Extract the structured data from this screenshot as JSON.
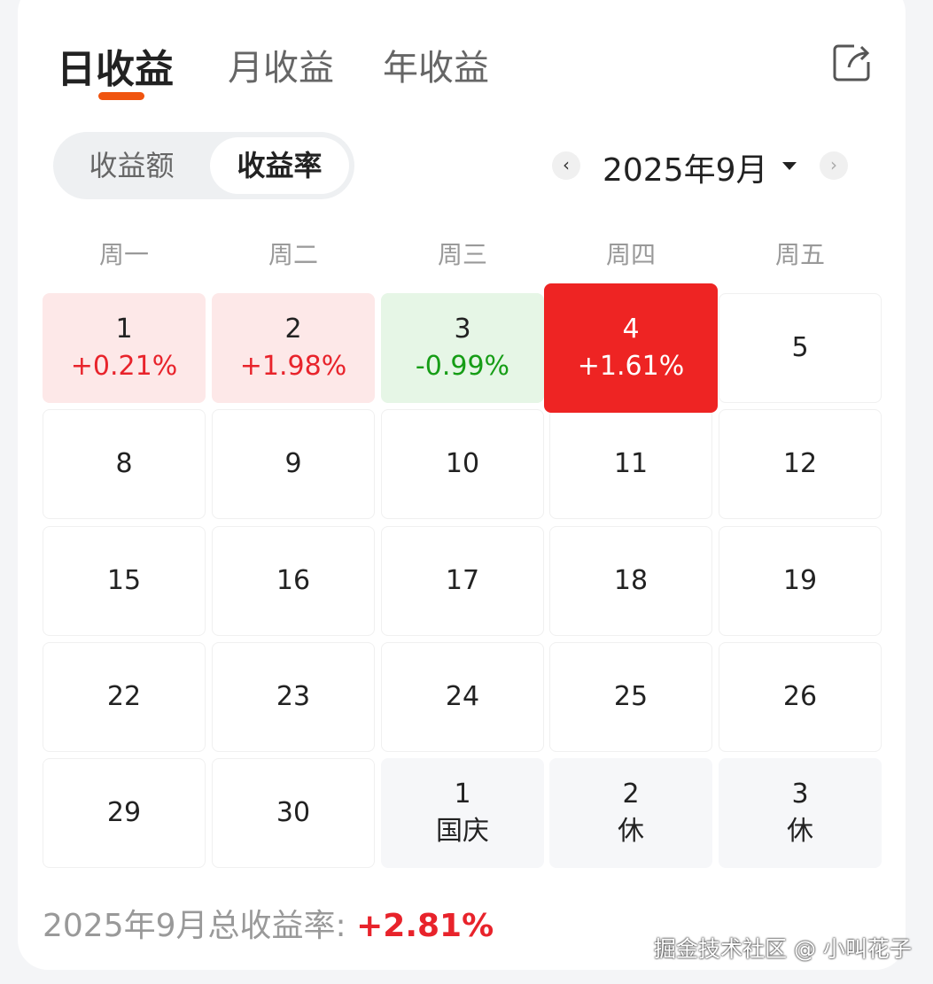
{
  "tabs": [
    {
      "label": "日收益",
      "active": true
    },
    {
      "label": "月收益",
      "active": false
    },
    {
      "label": "年收益",
      "active": false
    }
  ],
  "accent": "#f0540f",
  "segment": {
    "options": [
      "收益额",
      "收益率"
    ],
    "selected": "收益率"
  },
  "month_picker": {
    "label": "2025年9月",
    "prev": "‹",
    "next": "›"
  },
  "weekdays": [
    "周一",
    "周二",
    "周三",
    "周四",
    "周五"
  ],
  "days": [
    {
      "day": "1",
      "value": "+0.21%",
      "state": "up"
    },
    {
      "day": "2",
      "value": "+1.98%",
      "state": "up"
    },
    {
      "day": "3",
      "value": "-0.99%",
      "state": "down"
    },
    {
      "day": "4",
      "value": "+1.61%",
      "state": "selected"
    },
    {
      "day": "5"
    },
    {
      "day": "8"
    },
    {
      "day": "9"
    },
    {
      "day": "10"
    },
    {
      "day": "11"
    },
    {
      "day": "12"
    },
    {
      "day": "15"
    },
    {
      "day": "16"
    },
    {
      "day": "17"
    },
    {
      "day": "18"
    },
    {
      "day": "19"
    },
    {
      "day": "22"
    },
    {
      "day": "23"
    },
    {
      "day": "24"
    },
    {
      "day": "25"
    },
    {
      "day": "26"
    },
    {
      "day": "29"
    },
    {
      "day": "30"
    },
    {
      "day": "1",
      "value": "国庆",
      "state": "next"
    },
    {
      "day": "2",
      "value": "休",
      "state": "next"
    },
    {
      "day": "3",
      "value": "休",
      "state": "next"
    }
  ],
  "summary": {
    "label": "2025年9月总收益率: ",
    "value": "+2.81%"
  },
  "colors": {
    "up": "#e8232b",
    "down": "#169d16",
    "selected": "#ee2423"
  },
  "watermark": "掘金技术社区 @ 小叫花子"
}
